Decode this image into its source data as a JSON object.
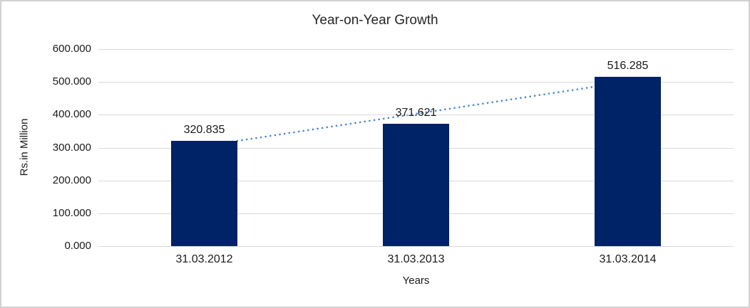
{
  "chart_data": {
    "type": "bar",
    "title": "Year-on-Year Growth",
    "xlabel": "Years",
    "ylabel": "Rs.in Million",
    "categories": [
      "31.03.2012",
      "31.03.2013",
      "31.03.2014"
    ],
    "values": [
      320.835,
      371.621,
      516.285
    ],
    "value_labels": [
      "320.835",
      "371.621",
      "516.285"
    ],
    "ylim": [
      0,
      600
    ],
    "ytick_step": 100,
    "ytick_labels": [
      "0.000",
      "100.000",
      "200.000",
      "300.000",
      "400.000",
      "500.000",
      "600.000"
    ],
    "grid": "horizontal-only",
    "legend": "none",
    "colors": {
      "bar": "#002266",
      "trendline": "#4a86c8",
      "gridline": "#d9d9d9",
      "text": "#1a1a1a",
      "title_text": "#262626",
      "frame_border": "#d1d1d1"
    },
    "trendline": {
      "type": "linear",
      "style": "dotted"
    }
  }
}
